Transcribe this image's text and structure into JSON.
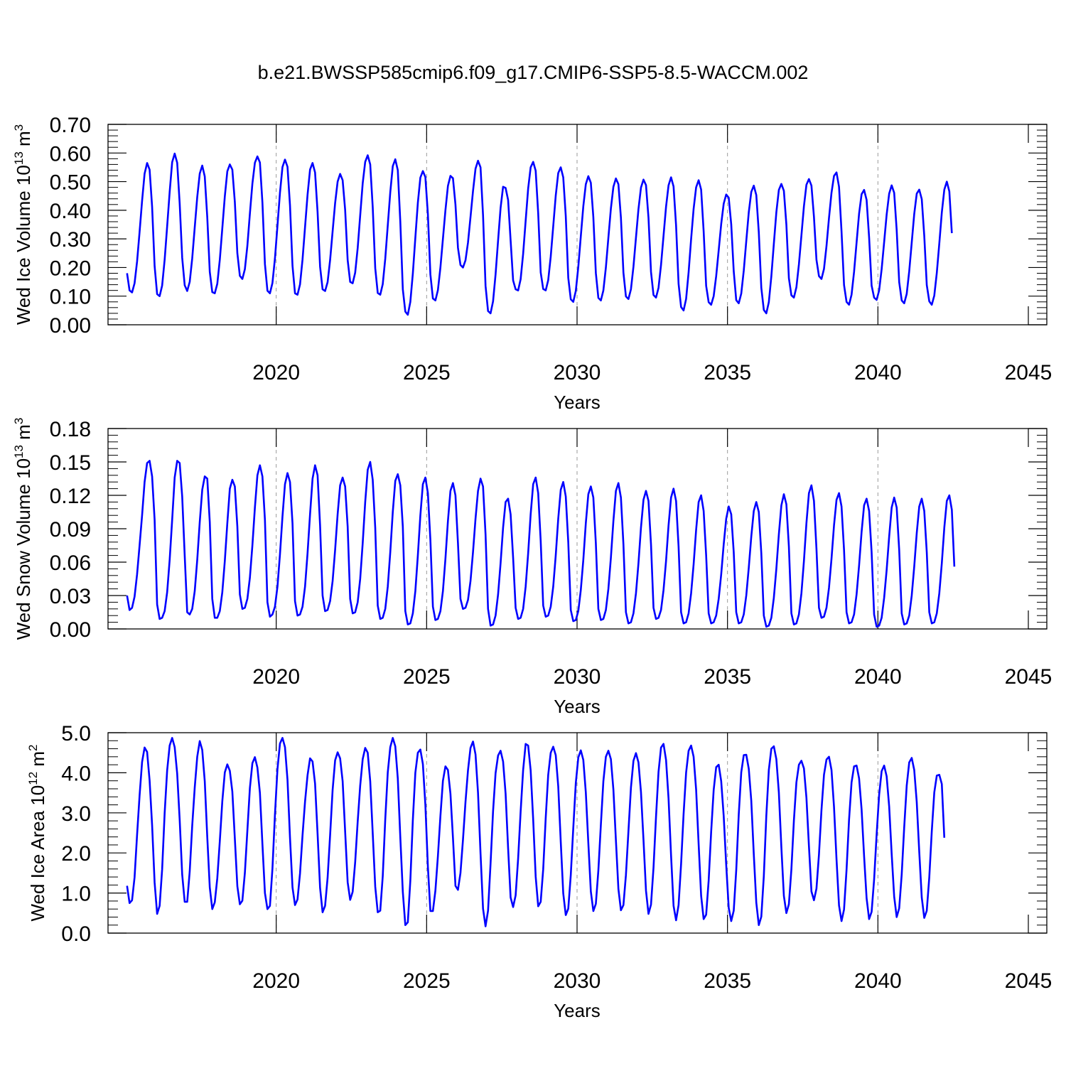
{
  "figure_title": "b.e21.BWSSP585cmip6.f09_g17.CMIP6-SSP5-8.5-WACCM.002",
  "colors": {
    "series": "#0000ff",
    "axis": "#000000",
    "refline": "#9a9a9a"
  },
  "chart_data": [
    {
      "type": "line",
      "ylabel_main": "Wed Ice Volume 10",
      "ylabel_exp": "13",
      "ylabel_unit": " m",
      "ylabel_unit_exp": "3",
      "xlabel": "Years",
      "xlim": [
        2015.0,
        2045.0
      ],
      "ylim": [
        0.0,
        0.7
      ],
      "xticks": [
        2020,
        2025,
        2030,
        2035,
        2040,
        2045
      ],
      "yticks": [
        "0.00",
        "0.10",
        "0.20",
        "0.30",
        "0.40",
        "0.50",
        "0.60",
        "0.70"
      ],
      "ytick_values": [
        0,
        0.1,
        0.2,
        0.3,
        0.4,
        0.5,
        0.6,
        0.7
      ],
      "reference_lines_x": [
        2020,
        2025,
        2030,
        2035,
        2040
      ],
      "x_start": 2015.0417,
      "x_step": 0.08333,
      "peaks": [
        0.565,
        0.598,
        0.556,
        0.56,
        0.588,
        0.577,
        0.565,
        0.527,
        0.592,
        0.578,
        0.537,
        0.52,
        0.573,
        0.478,
        0.569,
        0.55,
        0.519,
        0.511,
        0.507,
        0.515,
        0.505,
        0.455,
        0.486,
        0.492,
        0.509,
        0.532,
        0.471,
        0.487,
        0.472,
        0.5
      ],
      "troughs": [
        0.113,
        0.1,
        0.118,
        0.11,
        0.16,
        0.11,
        0.105,
        0.118,
        0.145,
        0.105,
        0.035,
        0.085,
        0.2,
        0.04,
        0.12,
        0.12,
        0.08,
        0.085,
        0.09,
        0.095,
        0.05,
        0.07,
        0.075,
        0.04,
        0.095,
        0.16,
        0.07,
        0.09,
        0.075,
        0.07
      ],
      "values": [
        0.18,
        0.12,
        0.113,
        0.145,
        0.221,
        0.324,
        0.433,
        0.528,
        0.565,
        0.542,
        0.412,
        0.205,
        0.107,
        0.1,
        0.137,
        0.227,
        0.344,
        0.464,
        0.568,
        0.598,
        0.566,
        0.423,
        0.234,
        0.138,
        0.118,
        0.15,
        0.232,
        0.34,
        0.446,
        0.528,
        0.556,
        0.518,
        0.376,
        0.185,
        0.114,
        0.11,
        0.143,
        0.227,
        0.337,
        0.448,
        0.536,
        0.56,
        0.542,
        0.429,
        0.25,
        0.171,
        0.16,
        0.194,
        0.276,
        0.388,
        0.493,
        0.566,
        0.588,
        0.567,
        0.427,
        0.212,
        0.119,
        0.11,
        0.146,
        0.232,
        0.346,
        0.461,
        0.551,
        0.577,
        0.552,
        0.417,
        0.206,
        0.11,
        0.105,
        0.141,
        0.228,
        0.341,
        0.454,
        0.542,
        0.565,
        0.532,
        0.394,
        0.203,
        0.124,
        0.118,
        0.149,
        0.226,
        0.326,
        0.425,
        0.5,
        0.527,
        0.505,
        0.401,
        0.226,
        0.15,
        0.145,
        0.182,
        0.268,
        0.382,
        0.494,
        0.569,
        0.592,
        0.56,
        0.411,
        0.198,
        0.111,
        0.105,
        0.142,
        0.231,
        0.347,
        0.463,
        0.554,
        0.578,
        0.54,
        0.36,
        0.124,
        0.046,
        0.035,
        0.08,
        0.179,
        0.304,
        0.426,
        0.514,
        0.537,
        0.516,
        0.387,
        0.176,
        0.092,
        0.085,
        0.121,
        0.2,
        0.3,
        0.4,
        0.485,
        0.52,
        0.512,
        0.42,
        0.269,
        0.209,
        0.2,
        0.225,
        0.287,
        0.376,
        0.467,
        0.545,
        0.573,
        0.55,
        0.383,
        0.136,
        0.048,
        0.04,
        0.082,
        0.176,
        0.294,
        0.408,
        0.482,
        0.478,
        0.436,
        0.295,
        0.155,
        0.124,
        0.12,
        0.159,
        0.248,
        0.363,
        0.476,
        0.55,
        0.569,
        0.538,
        0.39,
        0.183,
        0.125,
        0.12,
        0.156,
        0.238,
        0.344,
        0.451,
        0.53,
        0.55,
        0.515,
        0.38,
        0.164,
        0.089,
        0.08,
        0.118,
        0.202,
        0.309,
        0.414,
        0.491,
        0.519,
        0.496,
        0.376,
        0.181,
        0.094,
        0.085,
        0.12,
        0.2,
        0.304,
        0.406,
        0.482,
        0.511,
        0.491,
        0.374,
        0.182,
        0.099,
        0.09,
        0.124,
        0.203,
        0.304,
        0.404,
        0.479,
        0.507,
        0.488,
        0.374,
        0.185,
        0.104,
        0.095,
        0.129,
        0.209,
        0.311,
        0.412,
        0.487,
        0.515,
        0.483,
        0.347,
        0.143,
        0.062,
        0.05,
        0.09,
        0.183,
        0.299,
        0.405,
        0.48,
        0.505,
        0.472,
        0.327,
        0.136,
        0.079,
        0.07,
        0.1,
        0.17,
        0.26,
        0.352,
        0.423,
        0.455,
        0.444,
        0.351,
        0.187,
        0.086,
        0.075,
        0.109,
        0.189,
        0.292,
        0.393,
        0.464,
        0.486,
        0.453,
        0.323,
        0.129,
        0.052,
        0.04,
        0.079,
        0.169,
        0.283,
        0.393,
        0.471,
        0.492,
        0.468,
        0.35,
        0.163,
        0.103,
        0.095,
        0.131,
        0.211,
        0.312,
        0.414,
        0.489,
        0.509,
        0.486,
        0.377,
        0.227,
        0.17,
        0.16,
        0.195,
        0.275,
        0.373,
        0.461,
        0.52,
        0.532,
        0.482,
        0.326,
        0.139,
        0.08,
        0.07,
        0.105,
        0.185,
        0.287,
        0.388,
        0.456,
        0.471,
        0.436,
        0.305,
        0.137,
        0.095,
        0.087,
        0.12,
        0.194,
        0.289,
        0.385,
        0.458,
        0.487,
        0.461,
        0.331,
        0.149,
        0.085,
        0.075,
        0.108,
        0.187,
        0.287,
        0.387,
        0.458,
        0.472,
        0.439,
        0.311,
        0.139,
        0.082,
        0.07,
        0.102,
        0.181,
        0.284,
        0.392,
        0.472,
        0.5,
        0.466,
        0.32
      ]
    },
    {
      "type": "line",
      "ylabel_main": "Wed Snow Volume 10",
      "ylabel_exp": "13",
      "ylabel_unit": " m",
      "ylabel_unit_exp": "3",
      "xlabel": "Years",
      "xlim": [
        2015.0,
        2045.0
      ],
      "ylim": [
        0.0,
        0.18
      ],
      "xticks": [
        2020,
        2025,
        2030,
        2035,
        2040,
        2045
      ],
      "yticks": [
        "0.00",
        "0.03",
        "0.06",
        "0.09",
        "0.12",
        "0.15",
        "0.18"
      ],
      "ytick_values": [
        0,
        0.03,
        0.06,
        0.09,
        0.12,
        0.15,
        0.18
      ],
      "reference_lines_x": [
        2020,
        2025,
        2030,
        2035,
        2040
      ],
      "x_start": 2015.0417,
      "x_step": 0.08333,
      "peaks": [
        0.151,
        0.152,
        0.137,
        0.134,
        0.147,
        0.14,
        0.147,
        0.136,
        0.15,
        0.139,
        0.136,
        0.131,
        0.135,
        0.117,
        0.136,
        0.132,
        0.128,
        0.131,
        0.124,
        0.126,
        0.126,
        0.11,
        0.119,
        0.121,
        0.129,
        0.122,
        0.117,
        0.118,
        0.117,
        0.12
      ],
      "troughs": [
        0.017,
        0.009,
        0.013,
        0.01,
        0.018,
        0.011,
        0.012,
        0.016,
        0.014,
        0.009,
        0.004,
        0.008,
        0.018,
        0.003,
        0.009,
        0.011,
        0.007,
        0.008,
        0.005,
        0.009,
        0.005,
        0.005,
        0.005,
        0.002,
        0.004,
        0.01,
        0.005,
        0.002,
        0.004,
        0.005
      ],
      "values": [
        0.03,
        0.017,
        0.019,
        0.029,
        0.049,
        0.075,
        0.102,
        0.132,
        0.149,
        0.151,
        0.137,
        0.098,
        0.022,
        0.009,
        0.01,
        0.016,
        0.033,
        0.062,
        0.098,
        0.136,
        0.151,
        0.149,
        0.119,
        0.066,
        0.015,
        0.013,
        0.018,
        0.034,
        0.062,
        0.096,
        0.125,
        0.137,
        0.135,
        0.096,
        0.027,
        0.01,
        0.01,
        0.016,
        0.033,
        0.061,
        0.095,
        0.126,
        0.134,
        0.128,
        0.092,
        0.031,
        0.018,
        0.019,
        0.027,
        0.046,
        0.075,
        0.109,
        0.138,
        0.147,
        0.137,
        0.098,
        0.024,
        0.011,
        0.013,
        0.02,
        0.038,
        0.067,
        0.101,
        0.13,
        0.14,
        0.132,
        0.095,
        0.025,
        0.012,
        0.013,
        0.02,
        0.038,
        0.068,
        0.103,
        0.135,
        0.147,
        0.138,
        0.093,
        0.03,
        0.016,
        0.017,
        0.025,
        0.043,
        0.071,
        0.103,
        0.129,
        0.136,
        0.128,
        0.092,
        0.027,
        0.014,
        0.015,
        0.024,
        0.045,
        0.077,
        0.114,
        0.143,
        0.15,
        0.134,
        0.091,
        0.021,
        0.009,
        0.01,
        0.018,
        0.038,
        0.069,
        0.105,
        0.133,
        0.139,
        0.129,
        0.092,
        0.016,
        0.004,
        0.005,
        0.014,
        0.034,
        0.066,
        0.102,
        0.13,
        0.136,
        0.122,
        0.08,
        0.02,
        0.008,
        0.009,
        0.016,
        0.034,
        0.063,
        0.097,
        0.124,
        0.131,
        0.12,
        0.077,
        0.027,
        0.018,
        0.019,
        0.026,
        0.043,
        0.069,
        0.099,
        0.124,
        0.135,
        0.128,
        0.085,
        0.018,
        0.003,
        0.004,
        0.012,
        0.031,
        0.059,
        0.091,
        0.114,
        0.117,
        0.103,
        0.064,
        0.019,
        0.009,
        0.01,
        0.018,
        0.038,
        0.068,
        0.103,
        0.13,
        0.136,
        0.122,
        0.079,
        0.021,
        0.011,
        0.012,
        0.02,
        0.038,
        0.066,
        0.099,
        0.125,
        0.132,
        0.119,
        0.078,
        0.017,
        0.007,
        0.008,
        0.016,
        0.035,
        0.062,
        0.095,
        0.121,
        0.128,
        0.118,
        0.077,
        0.018,
        0.008,
        0.009,
        0.017,
        0.036,
        0.064,
        0.097,
        0.124,
        0.131,
        0.118,
        0.076,
        0.015,
        0.005,
        0.006,
        0.014,
        0.032,
        0.059,
        0.091,
        0.116,
        0.124,
        0.115,
        0.076,
        0.019,
        0.009,
        0.01,
        0.017,
        0.035,
        0.061,
        0.093,
        0.118,
        0.126,
        0.115,
        0.074,
        0.015,
        0.005,
        0.006,
        0.014,
        0.032,
        0.058,
        0.089,
        0.114,
        0.12,
        0.106,
        0.066,
        0.014,
        0.005,
        0.006,
        0.012,
        0.027,
        0.049,
        0.076,
        0.099,
        0.11,
        0.103,
        0.069,
        0.015,
        0.005,
        0.006,
        0.013,
        0.03,
        0.055,
        0.083,
        0.106,
        0.114,
        0.105,
        0.068,
        0.012,
        0.002,
        0.003,
        0.01,
        0.028,
        0.054,
        0.085,
        0.111,
        0.121,
        0.112,
        0.074,
        0.014,
        0.004,
        0.005,
        0.013,
        0.032,
        0.061,
        0.095,
        0.122,
        0.129,
        0.115,
        0.072,
        0.019,
        0.01,
        0.011,
        0.019,
        0.037,
        0.063,
        0.093,
        0.116,
        0.122,
        0.11,
        0.071,
        0.015,
        0.005,
        0.006,
        0.013,
        0.031,
        0.057,
        0.087,
        0.111,
        0.117,
        0.106,
        0.069,
        0.013,
        0.002,
        0.003,
        0.01,
        0.028,
        0.053,
        0.083,
        0.109,
        0.118,
        0.109,
        0.071,
        0.014,
        0.004,
        0.005,
        0.012,
        0.03,
        0.056,
        0.086,
        0.11,
        0.117,
        0.106,
        0.069,
        0.015,
        0.005,
        0.006,
        0.014,
        0.032,
        0.059,
        0.091,
        0.115,
        0.12,
        0.107,
        0.056
      ]
    },
    {
      "type": "line",
      "ylabel_main": "Wed Ice Area 10",
      "ylabel_exp": "12",
      "ylabel_unit": " m",
      "ylabel_unit_exp": "2",
      "xlabel": "Years",
      "xlim": [
        2015.0,
        2045.0
      ],
      "ylim": [
        0.0,
        5.0
      ],
      "xticks": [
        2020,
        2025,
        2030,
        2035,
        2040,
        2045
      ],
      "yticks": [
        "0.0",
        "1.0",
        "2.0",
        "3.0",
        "4.0",
        "5.0"
      ],
      "ytick_values": [
        0,
        1,
        2,
        3,
        4,
        5
      ],
      "reference_lines_x": [
        2020,
        2025,
        2030,
        2035,
        2040
      ],
      "x_start": 2015.0417,
      "x_step": 0.08333,
      "peaks": [
        4.63,
        4.87,
        4.79,
        4.21,
        4.39,
        4.87,
        4.36,
        4.51,
        4.62,
        4.87,
        4.58,
        4.16,
        4.78,
        4.55,
        4.72,
        4.65,
        4.56,
        4.55,
        4.49,
        4.72,
        4.68,
        4.2,
        4.45,
        4.66,
        4.3,
        4.4,
        4.19,
        4.18,
        4.37,
        3.95
      ],
      "troughs": [
        0.75,
        0.48,
        0.78,
        0.6,
        0.72,
        0.6,
        0.7,
        0.52,
        0.83,
        0.52,
        0.2,
        0.55,
        1.08,
        0.17,
        0.65,
        0.65,
        0.45,
        0.55,
        0.57,
        0.48,
        0.32,
        0.35,
        0.3,
        0.2,
        0.5,
        0.82,
        0.3,
        0.35,
        0.4,
        0.38
      ],
      "values": [
        1.18,
        0.75,
        0.82,
        1.39,
        2.45,
        3.43,
        4.27,
        4.63,
        4.52,
        3.81,
        2.69,
        1.26,
        0.48,
        0.68,
        1.59,
        2.99,
        4.06,
        4.68,
        4.87,
        4.64,
        3.98,
        2.82,
        1.46,
        0.78,
        0.78,
        1.54,
        2.68,
        3.63,
        4.4,
        4.79,
        4.57,
        3.79,
        2.4,
        1.14,
        0.6,
        0.77,
        1.37,
        2.29,
        3.29,
        4.01,
        4.21,
        4.05,
        3.53,
        2.36,
        1.17,
        0.72,
        0.81,
        1.5,
        2.56,
        3.62,
        4.24,
        4.39,
        4.13,
        3.5,
        2.22,
        1.0,
        0.6,
        0.68,
        1.61,
        2.96,
        4.09,
        4.73,
        4.87,
        4.64,
        3.83,
        2.38,
        1.14,
        0.7,
        0.84,
        1.49,
        2.44,
        3.28,
        3.94,
        4.36,
        4.28,
        3.73,
        2.48,
        1.13,
        0.52,
        0.68,
        1.38,
        2.44,
        3.57,
        4.31,
        4.51,
        4.36,
        3.79,
        2.53,
        1.27,
        0.83,
        1.03,
        1.77,
        2.78,
        3.68,
        4.34,
        4.62,
        4.5,
        3.79,
        2.49,
        1.16,
        0.52,
        0.56,
        1.42,
        2.84,
        4.01,
        4.64,
        4.87,
        4.66,
        3.86,
        2.39,
        1.03,
        0.2,
        0.27,
        1.31,
        2.82,
        4.0,
        4.5,
        4.58,
        4.22,
        3.2,
        1.66,
        0.55,
        0.55,
        1.06,
        1.92,
        2.92,
        3.8,
        4.16,
        4.07,
        3.48,
        2.38,
        1.18,
        1.08,
        1.5,
        2.33,
        3.27,
        4.06,
        4.62,
        4.78,
        4.46,
        3.5,
        1.99,
        0.61,
        0.17,
        0.56,
        1.73,
        3.04,
        3.99,
        4.43,
        4.55,
        4.28,
        3.48,
        2.12,
        0.89,
        0.65,
        0.94,
        1.86,
        3.03,
        4.07,
        4.72,
        4.68,
        4.06,
        2.84,
        1.41,
        0.67,
        0.78,
        1.59,
        2.87,
        3.95,
        4.5,
        4.65,
        4.44,
        3.66,
        2.28,
        0.99,
        0.45,
        0.61,
        1.45,
        2.62,
        3.74,
        4.38,
        4.56,
        4.32,
        3.51,
        2.25,
        1.04,
        0.55,
        0.73,
        1.56,
        2.7,
        3.79,
        4.4,
        4.55,
        4.34,
        3.58,
        2.32,
        1.1,
        0.57,
        0.7,
        1.45,
        2.54,
        3.63,
        4.3,
        4.49,
        4.26,
        3.52,
        2.33,
        1.06,
        0.48,
        0.71,
        1.63,
        2.9,
        4.02,
        4.63,
        4.72,
        4.32,
        3.36,
        1.94,
        0.68,
        0.32,
        0.7,
        1.72,
        2.97,
        4.0,
        4.55,
        4.68,
        4.4,
        3.58,
        2.22,
        0.93,
        0.35,
        0.46,
        1.31,
        2.53,
        3.57,
        4.14,
        4.2,
        3.79,
        2.92,
        1.7,
        0.63,
        0.3,
        0.56,
        1.57,
        2.96,
        4.01,
        4.44,
        4.45,
        4.1,
        3.3,
        1.97,
        0.76,
        0.2,
        0.41,
        1.42,
        2.93,
        4.07,
        4.6,
        4.66,
        4.34,
        3.51,
        2.14,
        0.93,
        0.5,
        0.72,
        1.59,
        2.81,
        3.76,
        4.2,
        4.3,
        4.11,
        3.38,
        2.17,
        1.04,
        0.82,
        1.11,
        1.96,
        3.07,
        3.95,
        4.33,
        4.4,
        4.07,
        3.15,
        1.84,
        0.69,
        0.3,
        0.59,
        1.58,
        2.83,
        3.76,
        4.16,
        4.18,
        3.86,
        3.09,
        1.92,
        0.87,
        0.35,
        0.53,
        1.34,
        2.46,
        3.45,
        4.04,
        4.18,
        3.91,
        3.16,
        1.98,
        0.91,
        0.4,
        0.62,
        1.46,
        2.64,
        3.68,
        4.26,
        4.37,
        4.07,
        3.27,
        2.03,
        0.89,
        0.38,
        0.56,
        1.39,
        2.54,
        3.51,
        3.93,
        3.95,
        3.72,
        2.38
      ]
    }
  ]
}
